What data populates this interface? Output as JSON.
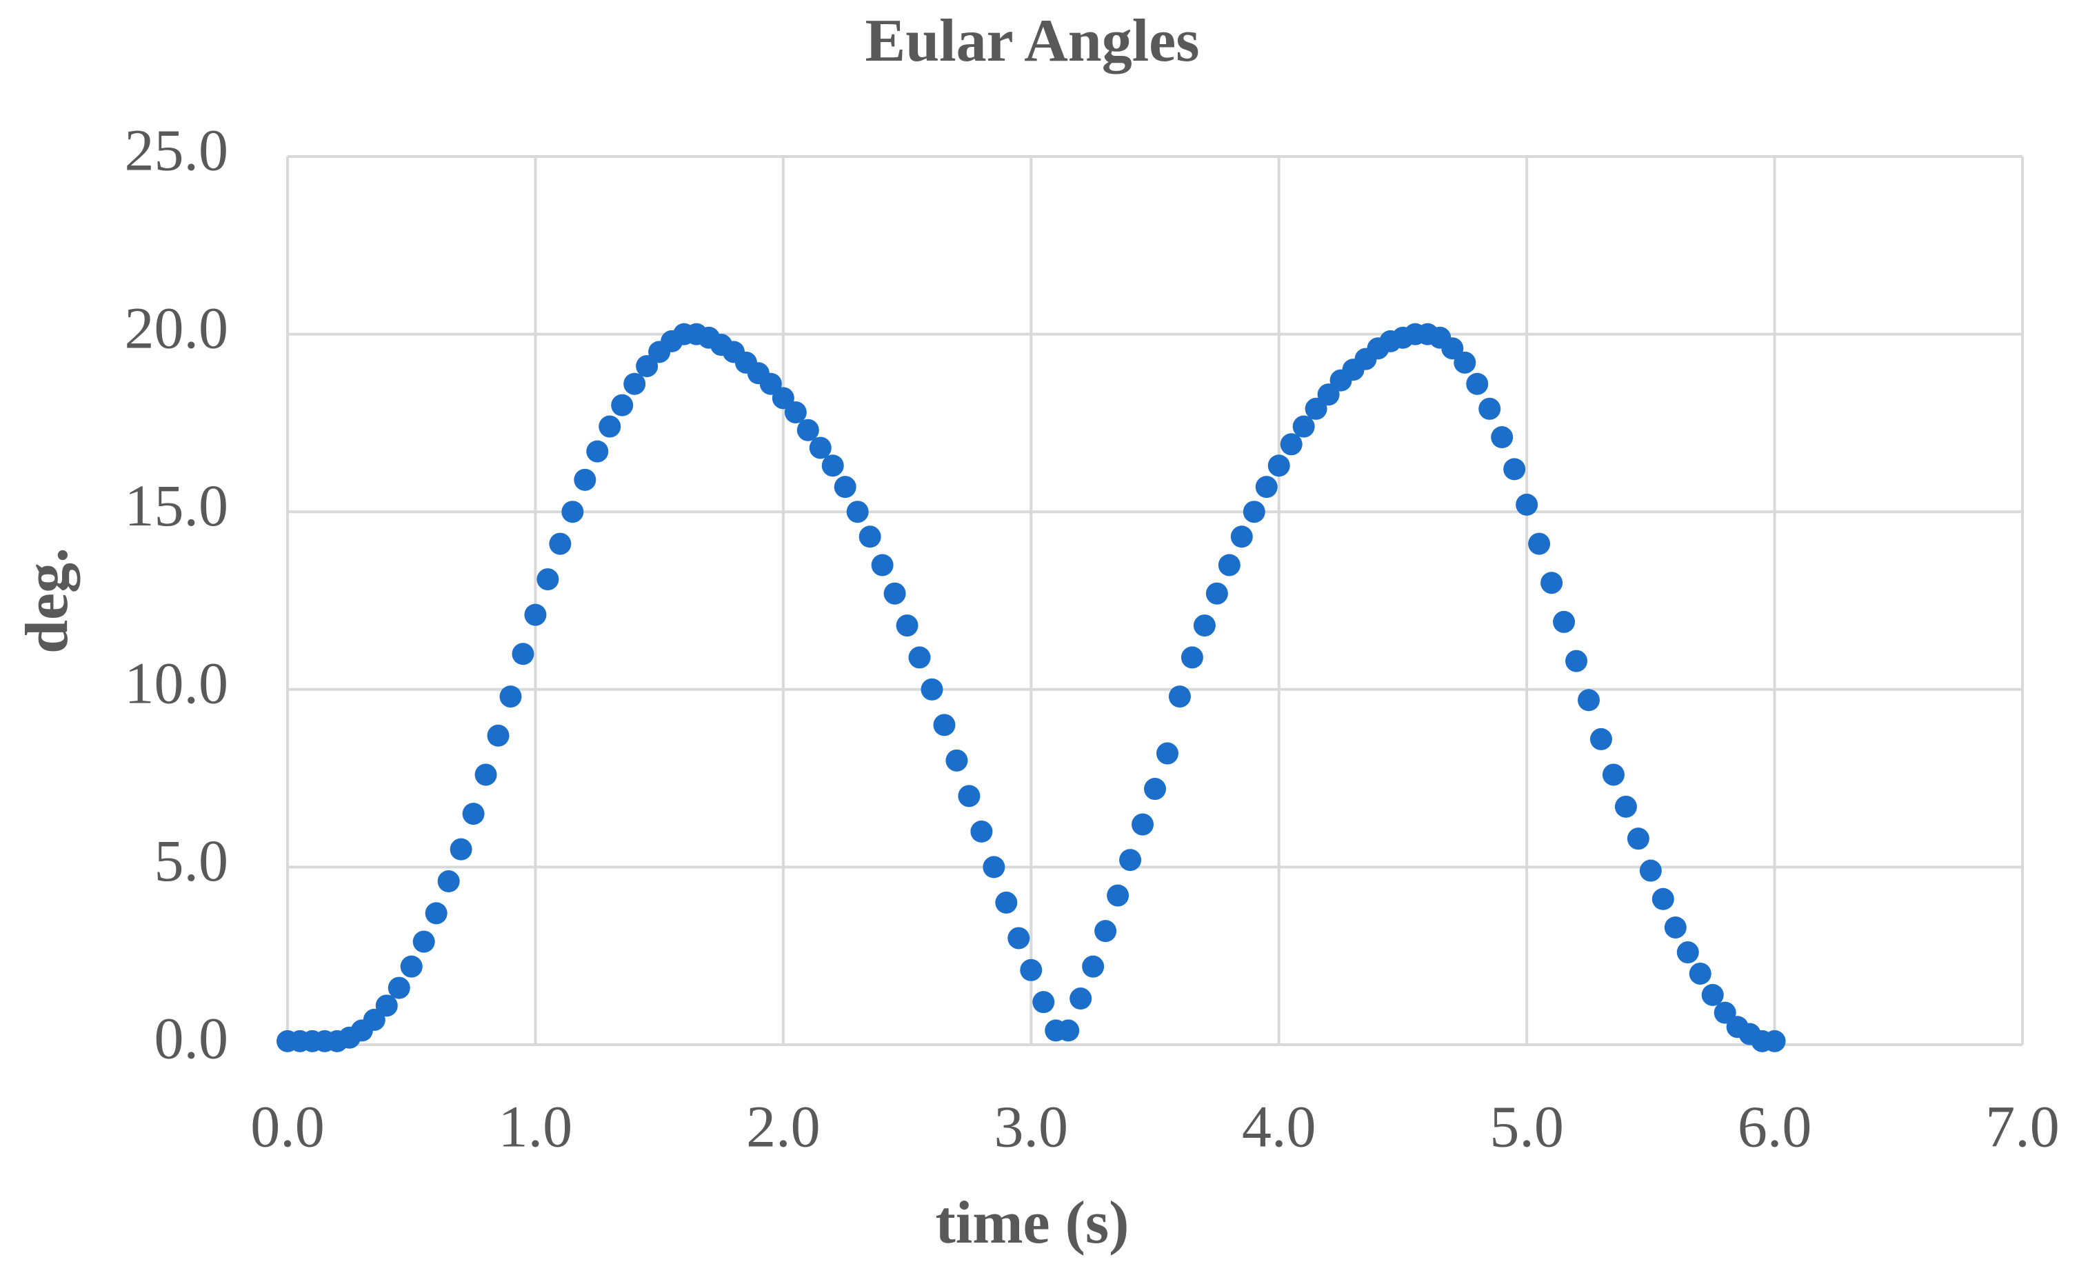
{
  "chart_data": {
    "type": "scatter",
    "title": "Eular Angles",
    "x_label": "time (s)",
    "y_label": "deg.",
    "x": [
      0,
      0.05,
      0.1,
      0.15,
      0.2,
      0.25,
      0.3,
      0.35,
      0.4,
      0.45,
      0.5,
      0.55,
      0.6,
      0.65,
      0.7,
      0.75,
      0.8,
      0.85,
      0.9,
      0.95,
      1,
      1.05,
      1.1,
      1.15,
      1.2,
      1.25,
      1.3,
      1.35,
      1.4,
      1.45,
      1.5,
      1.55,
      1.6,
      1.65,
      1.7,
      1.75,
      1.8,
      1.85,
      1.9,
      1.95,
      2,
      2.05,
      2.1,
      2.15,
      2.2,
      2.25,
      2.3,
      2.35,
      2.4,
      2.45,
      2.5,
      2.55,
      2.6,
      2.65,
      2.7,
      2.75,
      2.8,
      2.85,
      2.9,
      2.95,
      3,
      3.05,
      3.1,
      3.15,
      3.2,
      3.25,
      3.3,
      3.35,
      3.4,
      3.45,
      3.5,
      3.55,
      3.6,
      3.65,
      3.7,
      3.75,
      3.8,
      3.85,
      3.9,
      3.95,
      4,
      4.05,
      4.1,
      4.15,
      4.2,
      4.25,
      4.3,
      4.35,
      4.4,
      4.45,
      4.5,
      4.55,
      4.6,
      4.65,
      4.7,
      4.75,
      4.8,
      4.85,
      4.9,
      4.95,
      5,
      5.05,
      5.1,
      5.15,
      5.2,
      5.25,
      5.3,
      5.35,
      5.4,
      5.45,
      5.5,
      5.55,
      5.6,
      5.65,
      5.7,
      5.75,
      5.8,
      5.85,
      5.9,
      5.95,
      6
    ],
    "values": [
      0.1,
      0.1,
      0.1,
      0.1,
      0.1,
      0.2,
      0.4,
      0.7,
      1.1,
      1.6,
      2.2,
      2.9,
      3.7,
      4.6,
      5.5,
      6.5,
      7.6,
      8.7,
      9.8,
      11.0,
      12.1,
      13.1,
      14.1,
      15.0,
      15.9,
      16.7,
      17.4,
      18.0,
      18.6,
      19.1,
      19.5,
      19.8,
      20.0,
      20.0,
      19.9,
      19.7,
      19.5,
      19.2,
      18.9,
      18.6,
      18.2,
      17.8,
      17.3,
      16.8,
      16.3,
      15.7,
      15.0,
      14.3,
      13.5,
      12.7,
      11.8,
      10.9,
      10.0,
      9.0,
      8.0,
      7.0,
      6.0,
      5.0,
      4.0,
      3.0,
      2.1,
      1.2,
      0.4,
      0.4,
      1.3,
      2.2,
      3.2,
      4.2,
      5.2,
      6.2,
      7.2,
      8.2,
      9.8,
      10.9,
      11.8,
      12.7,
      13.5,
      14.3,
      15.0,
      15.7,
      16.3,
      16.9,
      17.4,
      17.9,
      18.3,
      18.7,
      19.0,
      19.3,
      19.6,
      19.8,
      19.9,
      20.0,
      20.0,
      19.9,
      19.6,
      19.2,
      18.6,
      17.9,
      17.1,
      16.2,
      15.2,
      14.1,
      13.0,
      11.9,
      10.8,
      9.7,
      8.6,
      7.6,
      6.7,
      5.8,
      4.9,
      4.1,
      3.3,
      2.6,
      2.0,
      1.4,
      0.9,
      0.5,
      0.3,
      0.1,
      0.1
    ],
    "color": "#1b6fcb",
    "xlim": [
      0,
      7
    ],
    "ylim": [
      0,
      25
    ],
    "xticks": [
      {
        "value": 0,
        "label": "0.0"
      },
      {
        "value": 1,
        "label": "1.0"
      },
      {
        "value": 2,
        "label": "2.0"
      },
      {
        "value": 3,
        "label": "3.0"
      },
      {
        "value": 4,
        "label": "4.0"
      },
      {
        "value": 5,
        "label": "5.0"
      },
      {
        "value": 6,
        "label": "6.0"
      },
      {
        "value": 7,
        "label": "7.0"
      }
    ],
    "yticks": [
      {
        "value": 0,
        "label": "0.0"
      },
      {
        "value": 5,
        "label": "5.0"
      },
      {
        "value": 10,
        "label": "10.0"
      },
      {
        "value": 15,
        "label": "15.0"
      },
      {
        "value": 20,
        "label": "20.0"
      },
      {
        "value": 25,
        "label": "25.0"
      }
    ],
    "grid": true
  }
}
